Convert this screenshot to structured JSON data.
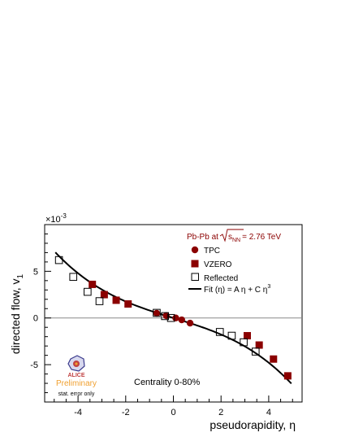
{
  "chart_data": {
    "type": "scatter",
    "xlabel": "pseudorapidity, η",
    "ylabel": "directed flow, v",
    "ylabel_sub": "1",
    "y_scale_base": "×10",
    "y_scale_exp": "-3",
    "xlim": [
      -5.4,
      5.4
    ],
    "ylim": [
      -9.0,
      10.0
    ],
    "x_ticks": [
      -4,
      -2,
      0,
      2,
      4
    ],
    "x_tick_labels": [
      "-4",
      "-2",
      "0",
      "2",
      "4"
    ],
    "y_ticks": [
      -5,
      0,
      5
    ],
    "y_tick_labels": [
      "-5",
      "0",
      "5"
    ],
    "grid": false,
    "legend_placement": "top-right",
    "title_lines": {
      "system": "Pb-Pb at",
      "energy_sym": "s",
      "energy_sub": "NN",
      "energy_value": "= 2.76 TeV"
    },
    "series": [
      {
        "name": "TPC",
        "marker": "circle",
        "color": "#8b0000",
        "x": [
          -0.7,
          -0.3,
          0.1,
          0.35,
          0.7
        ],
        "y": [
          0.5,
          0.25,
          0.0,
          -0.2,
          -0.55
        ]
      },
      {
        "name": "VZERO",
        "marker": "square",
        "color": "#8b0000",
        "x": [
          -3.4,
          -2.9,
          -2.4,
          -1.9,
          3.1,
          3.6,
          4.2,
          4.8
        ],
        "y": [
          3.6,
          2.5,
          1.9,
          1.5,
          -1.9,
          -2.9,
          -4.4,
          -6.2
        ]
      },
      {
        "name": "Reflected",
        "marker": "open-square",
        "color": "#000000",
        "x": [
          -4.8,
          -4.2,
          -3.6,
          -3.1,
          -0.7,
          -0.35,
          -0.1,
          1.95,
          2.45,
          2.95,
          3.45
        ],
        "y": [
          6.2,
          4.4,
          2.8,
          1.8,
          0.55,
          0.2,
          0.0,
          -1.5,
          -1.9,
          -2.6,
          -3.6
        ]
      }
    ],
    "fit": {
      "name": "Fit (η)  =  A η + C η",
      "name_sup": "3",
      "A": -0.78,
      "C": -0.0261,
      "x_range": [
        -4.95,
        4.95
      ]
    },
    "annotations": {
      "centrality": "Centrality 0-80%",
      "logo_text": "ALICE",
      "preliminary": "Preliminary",
      "stat_note": "stat. error only"
    }
  },
  "colors": {
    "accent": "#8b0000",
    "preliminary": "#f0a030",
    "zero_line": "#888888",
    "logo_frame": "#3a3a8c"
  }
}
